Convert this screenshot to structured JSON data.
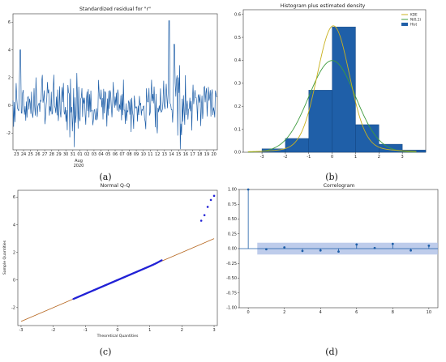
{
  "captions": [
    "(a)",
    "(b)",
    "(c)",
    "(d)"
  ],
  "chart_data": [
    {
      "type": "line",
      "title": "Standardized residual for \"r\"",
      "x_ticks": [
        "23",
        "24",
        "25",
        "26",
        "27",
        "28",
        "29",
        "30",
        "31",
        "01",
        "02",
        "03",
        "04",
        "05",
        "06",
        "07",
        "08",
        "09",
        "10",
        "11",
        "12",
        "13",
        "14",
        "15",
        "16",
        "17",
        "18",
        "19",
        "20"
      ],
      "x_sublabel": [
        "Aug",
        "2020"
      ],
      "y_ticks": [
        "-2",
        "0",
        "2",
        "4",
        "6"
      ],
      "ylim": [
        -3.2,
        6.6
      ],
      "color": "#1f5fa8",
      "n_points": 320
    },
    {
      "type": "bar",
      "title": "Histogram plus estimated density",
      "bins": [
        {
          "x0": -3,
          "x1": -2,
          "value": 0.015
        },
        {
          "x0": -2,
          "x1": -1,
          "value": 0.06
        },
        {
          "x0": -1,
          "x1": 0,
          "value": 0.27
        },
        {
          "x0": 0,
          "x1": 1,
          "value": 0.545
        },
        {
          "x0": 1,
          "x1": 2,
          "value": 0.12
        },
        {
          "x0": 2,
          "x1": 3,
          "value": 0.035
        },
        {
          "x0": 3,
          "x1": 4,
          "value": 0.01
        }
      ],
      "x_ticks": [
        "-3",
        "-2",
        "-1",
        "0",
        "1",
        "2",
        "3"
      ],
      "y_ticks": [
        "0.0",
        "0.1",
        "0.2",
        "0.3",
        "0.4",
        "0.5",
        "0.6"
      ],
      "xlim": [
        -3.8,
        4.0
      ],
      "ylim": [
        0,
        0.62
      ],
      "legend": [
        "KDE",
        "N(0,1)",
        "Hist"
      ],
      "legend_position": "top-right",
      "colors": {
        "kde": "#c9b11e",
        "normal": "#3e9b3e",
        "hist": "#1f5fa8"
      }
    },
    {
      "type": "scatter",
      "title": "Normal Q-Q",
      "xlabel": "Theoretical Quantities",
      "ylabel": "Sample Quantities",
      "x_ticks": [
        "-3",
        "-2",
        "-1",
        "0",
        "1",
        "2",
        "3"
      ],
      "y_ticks": [
        "-2",
        "0",
        "2",
        "4",
        "6"
      ],
      "xlim": [
        -3.1,
        3.1
      ],
      "ylim": [
        -3.3,
        6.5
      ],
      "reference_line": [
        [
          -3,
          -3
        ],
        [
          3,
          3
        ]
      ],
      "outliers": [
        [
          2.6,
          4.3
        ],
        [
          2.7,
          4.7
        ],
        [
          2.8,
          5.3
        ],
        [
          2.9,
          5.8
        ],
        [
          3.0,
          6.1
        ]
      ],
      "colors": {
        "points": "#2323d6",
        "line": "#b5651d"
      }
    },
    {
      "type": "bar",
      "title": "Correlogram",
      "lags": [
        0,
        1,
        2,
        3,
        4,
        5,
        6,
        7,
        8,
        9,
        10
      ],
      "values": [
        1.0,
        -0.01,
        0.02,
        -0.04,
        -0.03,
        -0.05,
        0.07,
        0.01,
        0.08,
        -0.03,
        0.05
      ],
      "confidence_band": [
        -0.1,
        0.1
      ],
      "x_ticks": [
        "0",
        "2",
        "4",
        "6",
        "8",
        "10"
      ],
      "y_ticks": [
        "1.00",
        "0.75",
        "0.50",
        "0.25",
        "0.00",
        "-0.25",
        "-0.50",
        "-0.75",
        "-1.00"
      ],
      "xlim": [
        -0.5,
        10.5
      ],
      "ylim": [
        -1.0,
        1.0
      ],
      "colors": {
        "stem": "#1f5fa8",
        "band": "#aebfe6"
      }
    }
  ]
}
